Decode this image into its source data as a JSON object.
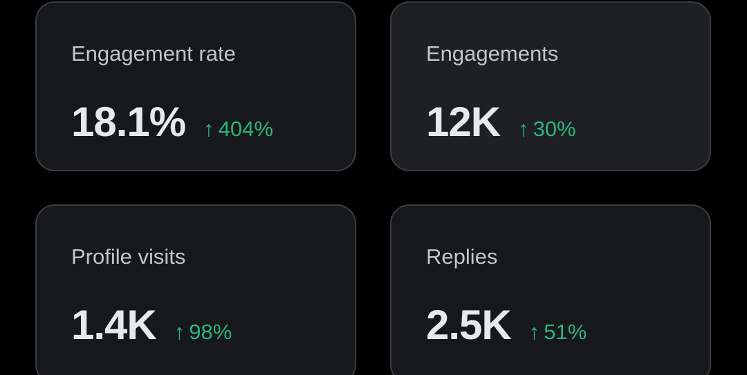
{
  "colors": {
    "background": "#000000",
    "card_background": "#16181c",
    "card_highlight_background": "#1e2024",
    "card_border": "#3a3d42",
    "label": "#c2c5ca",
    "value": "#e7e9ea",
    "positive_delta": "#2fb37a"
  },
  "metrics": [
    {
      "label": "Engagement rate",
      "value": "18.1%",
      "delta": "404%",
      "delta_icon": "arrow-up-icon"
    },
    {
      "label": "Engagements",
      "value": "12K",
      "delta": "30%",
      "delta_icon": "arrow-up-icon"
    },
    {
      "label": "Profile visits",
      "value": "1.4K",
      "delta": "98%",
      "delta_icon": "arrow-up-icon"
    },
    {
      "label": "Replies",
      "value": "2.5K",
      "delta": "51%",
      "delta_icon": "arrow-up-icon"
    }
  ]
}
